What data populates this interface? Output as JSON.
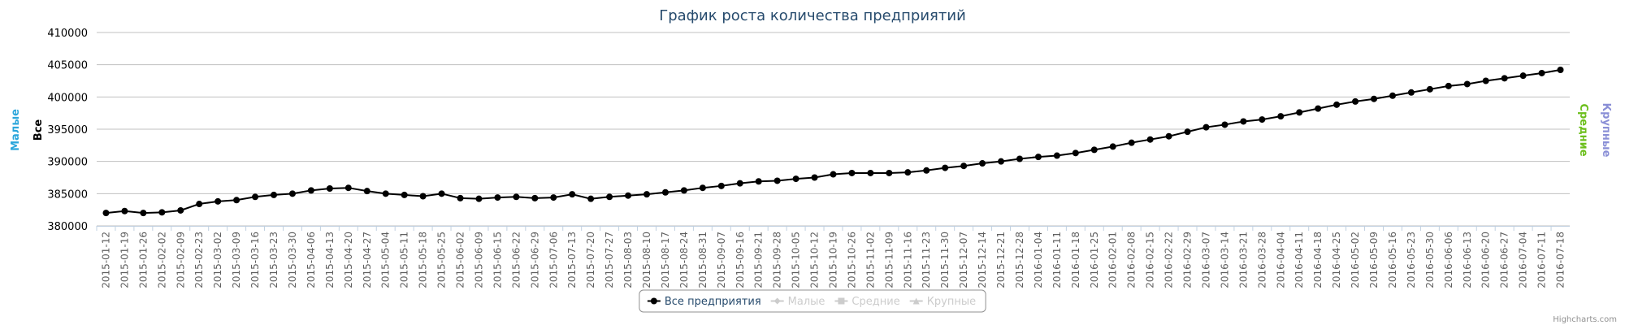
{
  "chart_data": {
    "type": "line",
    "title": "График роста количества предприятий",
    "credits": "Highcharts.com",
    "y_axis_titles": [
      {
        "text": "Малые",
        "color": "#2ba6db",
        "side": "left"
      },
      {
        "text": "Все",
        "color": "#000000",
        "side": "left"
      },
      {
        "text": "Средние",
        "color": "#6cbf1c",
        "side": "right"
      },
      {
        "text": "Крупные",
        "color": "#8a8fd6",
        "side": "right"
      }
    ],
    "categories": [
      "2015-01-12",
      "2015-01-19",
      "2015-01-26",
      "2015-02-02",
      "2015-02-09",
      "2015-02-23",
      "2015-03-02",
      "2015-03-09",
      "2015-03-16",
      "2015-03-23",
      "2015-03-30",
      "2015-04-06",
      "2015-04-13",
      "2015-04-20",
      "2015-04-27",
      "2015-05-04",
      "2015-05-11",
      "2015-05-18",
      "2015-05-25",
      "2015-06-02",
      "2015-06-09",
      "2015-06-15",
      "2015-06-22",
      "2015-06-29",
      "2015-07-06",
      "2015-07-13",
      "2015-07-20",
      "2015-07-27",
      "2015-08-03",
      "2015-08-10",
      "2015-08-17",
      "2015-08-24",
      "2015-08-31",
      "2015-09-07",
      "2015-09-16",
      "2015-09-21",
      "2015-09-28",
      "2015-10-05",
      "2015-10-12",
      "2015-10-19",
      "2015-10-26",
      "2015-11-02",
      "2015-11-09",
      "2015-11-16",
      "2015-11-23",
      "2015-11-30",
      "2015-12-07",
      "2015-12-14",
      "2015-12-21",
      "2015-12-28",
      "2016-01-04",
      "2016-01-11",
      "2016-01-18",
      "2016-01-25",
      "2016-02-01",
      "2016-02-08",
      "2016-02-15",
      "2016-02-22",
      "2016-02-29",
      "2016-03-07",
      "2016-03-14",
      "2016-03-21",
      "2016-03-28",
      "2016-04-04",
      "2016-04-11",
      "2016-04-18",
      "2016-04-25",
      "2016-05-02",
      "2016-05-09",
      "2016-05-16",
      "2016-05-23",
      "2016-05-30",
      "2016-06-06",
      "2016-06-13",
      "2016-06-20",
      "2016-06-27",
      "2016-07-04",
      "2016-07-11",
      "2016-07-18"
    ],
    "series": [
      {
        "name": "Все предприятия",
        "color": "#000000",
        "marker": "circle",
        "visible": true,
        "values": [
          382000,
          382300,
          382000,
          382100,
          382400,
          383400,
          383800,
          384000,
          384500,
          384800,
          385000,
          385500,
          385800,
          385900,
          385400,
          385000,
          384800,
          384600,
          385000,
          384300,
          384200,
          384400,
          384500,
          384300,
          384400,
          384900,
          384200,
          384500,
          384700,
          384900,
          385200,
          385500,
          385900,
          386200,
          386600,
          386900,
          387000,
          387300,
          387500,
          388000,
          388200,
          388200,
          388200,
          388300,
          388600,
          389000,
          389300,
          389700,
          390000,
          390400,
          390700,
          390900,
          391300,
          391800,
          392300,
          392900,
          393400,
          393900,
          394600,
          395300,
          395700,
          396200,
          396500,
          397000,
          397600,
          398200,
          398800,
          399300,
          399700,
          400200,
          400700,
          401200,
          401700,
          402000,
          402500,
          402900,
          403300,
          403700,
          404200
        ]
      },
      {
        "name": "Малые",
        "color": "#cccccc",
        "marker": "diamond",
        "visible": false
      },
      {
        "name": "Средние",
        "color": "#cccccc",
        "marker": "square",
        "visible": false
      },
      {
        "name": "Крупные",
        "color": "#cccccc",
        "marker": "triangle",
        "visible": false
      }
    ],
    "ylim": [
      380000,
      410000
    ],
    "yticks": [
      380000,
      385000,
      390000,
      395000,
      400000,
      405000,
      410000
    ],
    "grid": true
  }
}
